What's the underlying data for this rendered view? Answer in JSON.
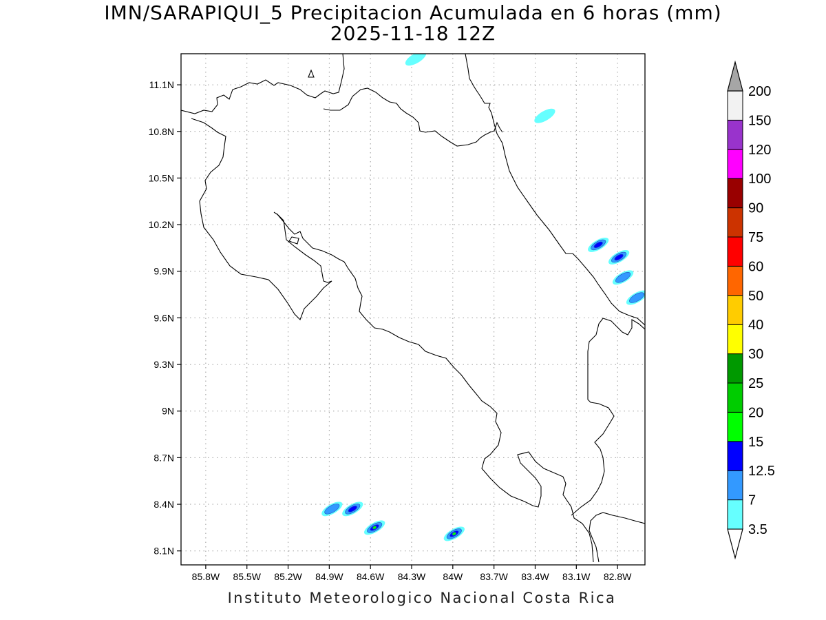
{
  "title": "IMN/SARAPIQUI_5 Precipitacion Acumulada en 6 horas (mm)",
  "subtitle": "2025-11-18 12Z",
  "footer": "Instituto Meteorologico Nacional Costa Rica",
  "map": {
    "lon_range": [
      -85.98,
      -82.6
    ],
    "lat_range": [
      8.01,
      11.3
    ],
    "lon_ticks": [
      {
        "value": -85.8,
        "label": "85.8W"
      },
      {
        "value": -85.5,
        "label": "85.5W"
      },
      {
        "value": -85.2,
        "label": "85.2W"
      },
      {
        "value": -84.9,
        "label": "84.9W"
      },
      {
        "value": -84.6,
        "label": "84.6W"
      },
      {
        "value": -84.3,
        "label": "84.3W"
      },
      {
        "value": -84.0,
        "label": "84W"
      },
      {
        "value": -83.7,
        "label": "83.7W"
      },
      {
        "value": -83.4,
        "label": "83.4W"
      },
      {
        "value": -83.1,
        "label": "83.1W"
      },
      {
        "value": -82.8,
        "label": "82.8W"
      }
    ],
    "lat_ticks": [
      {
        "value": 8.1,
        "label": "8.1N"
      },
      {
        "value": 8.4,
        "label": "8.4N"
      },
      {
        "value": 8.7,
        "label": "8.7N"
      },
      {
        "value": 9.0,
        "label": "9N"
      },
      {
        "value": 9.3,
        "label": "9.3N"
      },
      {
        "value": 9.6,
        "label": "9.6N"
      },
      {
        "value": 9.9,
        "label": "9.9N"
      },
      {
        "value": 10.2,
        "label": "10.2N"
      },
      {
        "value": 10.5,
        "label": "10.5N"
      },
      {
        "value": 10.8,
        "label": "10.8N"
      },
      {
        "value": 11.1,
        "label": "11.1N"
      }
    ],
    "grid": true,
    "rain_cells": [
      {
        "lon": -84.27,
        "lat": 11.27,
        "max_mm": 3.5
      },
      {
        "lon": -83.33,
        "lat": 10.9,
        "max_mm": 3.5
      },
      {
        "lon": -82.94,
        "lat": 10.07,
        "max_mm": 12.5
      },
      {
        "lon": -82.79,
        "lat": 9.99,
        "max_mm": 12.5
      },
      {
        "lon": -82.76,
        "lat": 9.86,
        "max_mm": 7
      },
      {
        "lon": -82.66,
        "lat": 9.73,
        "max_mm": 7
      },
      {
        "lon": -84.73,
        "lat": 8.37,
        "max_mm": 12.5
      },
      {
        "lon": -84.88,
        "lat": 8.37,
        "max_mm": 7
      },
      {
        "lon": -84.57,
        "lat": 8.25,
        "max_mm": 15
      },
      {
        "lon": -83.99,
        "lat": 8.21,
        "max_mm": 15
      }
    ]
  },
  "colorbar": {
    "levels": [
      "3.5",
      "7",
      "12.5",
      "15",
      "20",
      "25",
      "30",
      "40",
      "50",
      "60",
      "75",
      "90",
      "100",
      "120",
      "150",
      "200"
    ],
    "colors": [
      "#66ffff",
      "#3399ff",
      "#0000ff",
      "#00ff00",
      "#00cc00",
      "#009900",
      "#ffff00",
      "#ffcc00",
      "#ff6600",
      "#ff0000",
      "#cc3300",
      "#990000",
      "#ff00ff",
      "#9933cc",
      "#f2f2f2",
      "#a6a6a6"
    ]
  }
}
